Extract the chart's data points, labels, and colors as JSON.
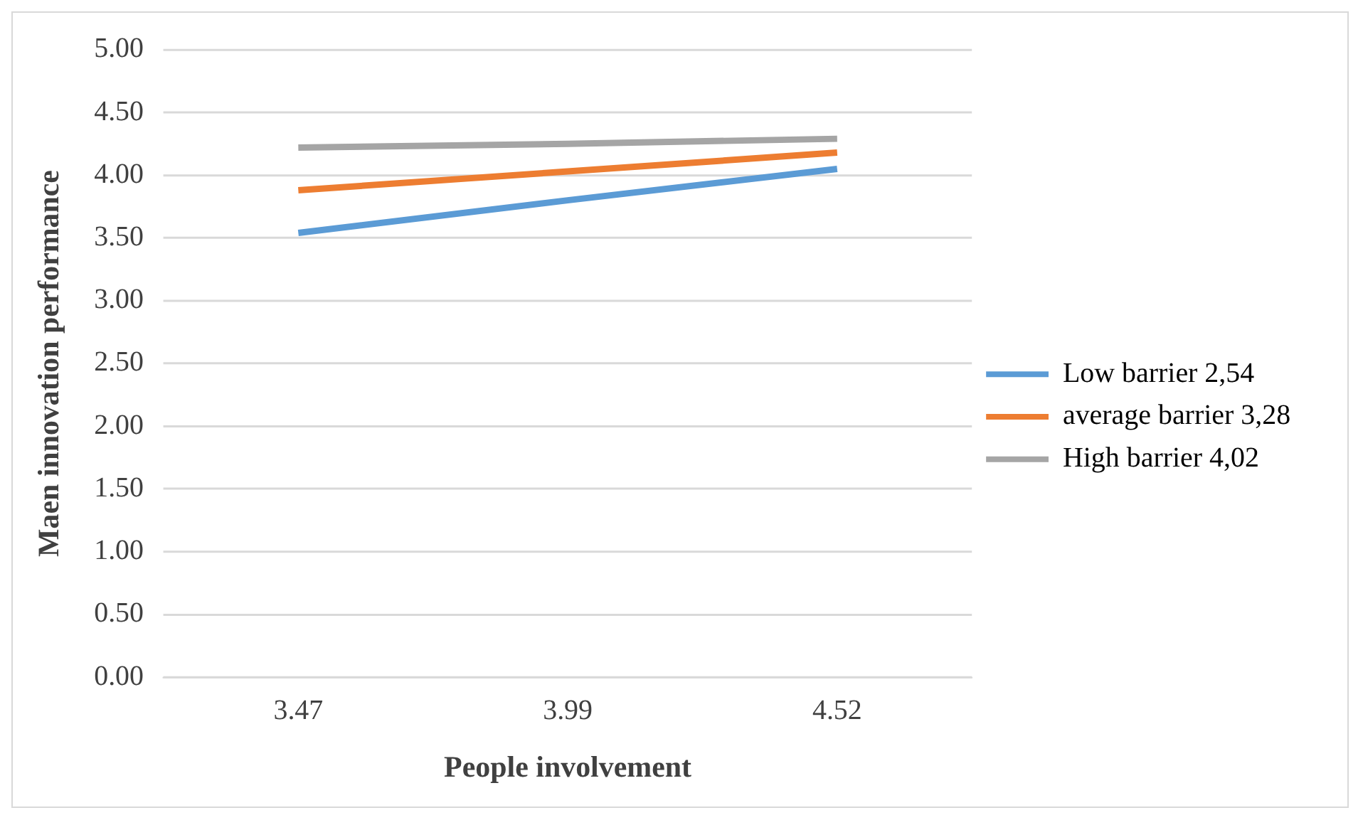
{
  "chart_data": {
    "type": "line",
    "xlabel": "People involvement",
    "ylabel": "Maen innovation performance",
    "categories": [
      "3.47",
      "3.99",
      "4.52"
    ],
    "series": [
      {
        "name": "Low barrier 2,54",
        "color": "#5b9bd5",
        "values": [
          3.54,
          3.8,
          4.05
        ]
      },
      {
        "name": "average barrier 3,28",
        "color": "#ed7d31",
        "values": [
          3.88,
          4.03,
          4.18
        ]
      },
      {
        "name": "High barrier 4,02",
        "color": "#a5a5a5",
        "values": [
          4.22,
          4.25,
          4.29
        ]
      }
    ],
    "ylim": [
      0,
      5
    ],
    "yticks": [
      {
        "value": 0,
        "label": "0.00"
      },
      {
        "value": 0.5,
        "label": "0.50"
      },
      {
        "value": 1,
        "label": "1.00"
      },
      {
        "value": 1.5,
        "label": "1.50"
      },
      {
        "value": 2,
        "label": "2.00"
      },
      {
        "value": 2.5,
        "label": "2.50"
      },
      {
        "value": 3,
        "label": "3.00"
      },
      {
        "value": 3.5,
        "label": "3.50"
      },
      {
        "value": 4,
        "label": "4.00"
      },
      {
        "value": 4.5,
        "label": "4.50"
      },
      {
        "value": 5,
        "label": "5.00"
      }
    ],
    "grid": "y",
    "legend": "right",
    "marker": "none"
  }
}
